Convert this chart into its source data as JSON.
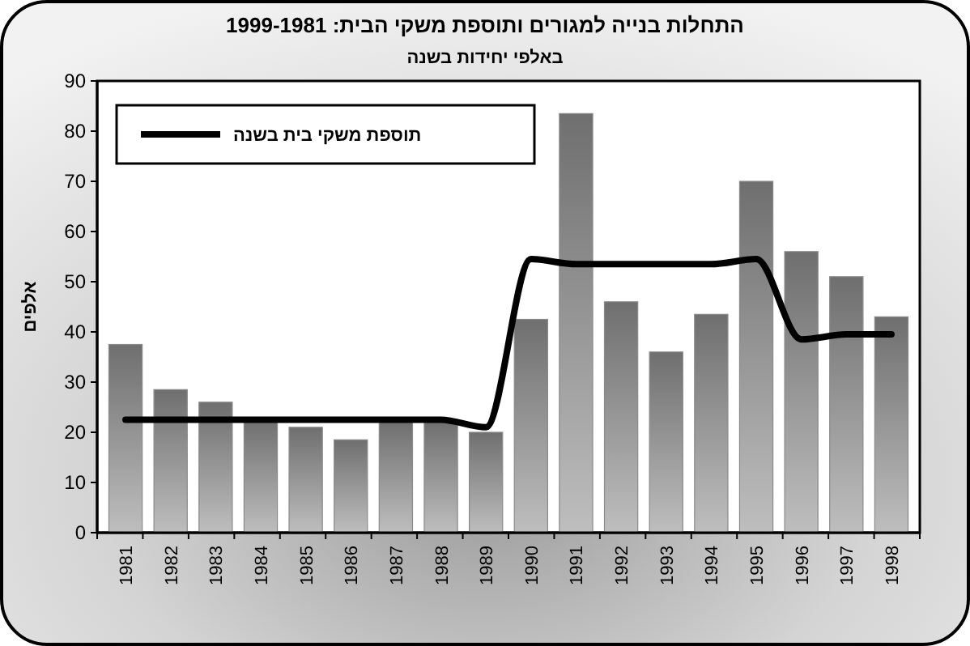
{
  "chart_data": {
    "type": "bar",
    "title": "התחלות בנייה למגורים ותוספת משקי הבית: 1999-1981",
    "subtitle": "באלפי יחידות בשנה",
    "ylabel": "אלפים",
    "categories": [
      "1981",
      "1982",
      "1983",
      "1984",
      "1985",
      "1986",
      "1987",
      "1988",
      "1989",
      "1990",
      "1991",
      "1992",
      "1993",
      "1994",
      "1995",
      "1996",
      "1997",
      "1998"
    ],
    "series": [
      {
        "color": "#8a8a8a",
        "values": [
          37.5,
          28.5,
          26,
          22.5,
          21,
          18.5,
          22,
          22,
          20,
          42.5,
          83.5,
          46,
          36,
          43.5,
          70,
          56,
          51,
          43
        ]
      },
      {
        "type": "line",
        "name": "תוספת משקי בית בשנה",
        "color": "#000000",
        "values": [
          22.5,
          22.5,
          22.5,
          22.5,
          22.5,
          22.5,
          22.5,
          22.5,
          21,
          54.5,
          53.5,
          53.5,
          53.5,
          53.5,
          54.5,
          38.5,
          39.5,
          39.5
        ]
      }
    ],
    "ylim": [
      0,
      90
    ],
    "yticks": [
      0,
      10,
      20,
      30,
      40,
      50,
      60,
      70,
      80,
      90
    ],
    "grid": false,
    "legend": "top left",
    "line_style": "solid",
    "marker": "none"
  }
}
